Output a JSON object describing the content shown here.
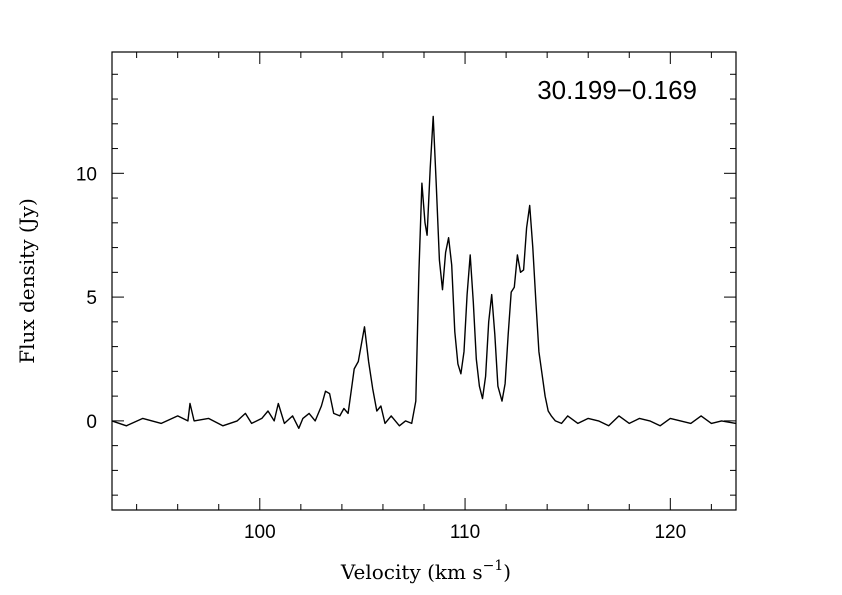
{
  "chart_data": {
    "type": "line",
    "source_label": "30.199−0.169",
    "xlabel": "Velocity (km s",
    "xlabel_exp": "−1",
    "xlabel_close": ")",
    "ylabel": "Flux density (Jy)",
    "xlim": [
      92.8,
      123.2
    ],
    "ylim": [
      -3.6,
      14.9
    ],
    "x_ticks": [
      100,
      110,
      120
    ],
    "x_tick_labels": [
      "100",
      "110",
      "120"
    ],
    "y_ticks": [
      0,
      5,
      10
    ],
    "y_tick_labels": [
      "0",
      "5",
      "10"
    ],
    "grid": false,
    "series": [
      {
        "color": "#000000",
        "x": [
          92.8,
          93.5,
          94.3,
          95.2,
          96.0,
          96.5,
          96.6,
          96.8,
          97.5,
          98.2,
          98.9,
          99.3,
          99.6,
          100.1,
          100.4,
          100.7,
          100.9,
          101.2,
          101.6,
          101.9,
          102.1,
          102.4,
          102.7,
          103.0,
          103.2,
          103.4,
          103.6,
          103.9,
          104.1,
          104.3,
          104.5,
          104.6,
          104.8,
          104.95,
          105.1,
          105.3,
          105.5,
          105.7,
          105.9,
          106.1,
          106.4,
          106.8,
          107.1,
          107.4,
          107.6,
          107.75,
          107.9,
          108.05,
          108.15,
          108.3,
          108.45,
          108.6,
          108.75,
          108.9,
          109.05,
          109.2,
          109.35,
          109.5,
          109.65,
          109.8,
          109.95,
          110.1,
          110.25,
          110.4,
          110.55,
          110.7,
          110.85,
          111.0,
          111.15,
          111.3,
          111.45,
          111.6,
          111.8,
          111.95,
          112.1,
          112.25,
          112.4,
          112.55,
          112.7,
          112.85,
          113.0,
          113.15,
          113.3,
          113.45,
          113.6,
          113.75,
          113.9,
          114.05,
          114.2,
          114.4,
          114.7,
          115.0,
          115.5,
          116.0,
          116.5,
          117.0,
          117.5,
          118.0,
          118.5,
          119.0,
          119.5,
          120.0,
          120.5,
          121.0,
          121.5,
          122.0,
          122.5,
          123.2
        ],
        "y": [
          0.0,
          -0.2,
          0.1,
          -0.1,
          0.2,
          0.0,
          0.7,
          0.0,
          0.1,
          -0.2,
          0.0,
          0.3,
          -0.1,
          0.1,
          0.4,
          0.0,
          0.7,
          -0.1,
          0.2,
          -0.3,
          0.1,
          0.3,
          0.0,
          0.6,
          1.2,
          1.1,
          0.3,
          0.2,
          0.5,
          0.3,
          1.5,
          2.1,
          2.4,
          3.1,
          3.8,
          2.4,
          1.3,
          0.4,
          0.6,
          -0.1,
          0.2,
          -0.2,
          0.0,
          -0.1,
          0.8,
          6.0,
          9.6,
          8.0,
          7.5,
          10.2,
          12.3,
          9.5,
          6.5,
          5.3,
          6.8,
          7.4,
          6.3,
          3.6,
          2.3,
          1.9,
          2.8,
          5.1,
          6.7,
          4.8,
          2.5,
          1.4,
          0.9,
          1.8,
          4.0,
          5.1,
          3.5,
          1.4,
          0.8,
          1.5,
          3.5,
          5.2,
          5.4,
          6.7,
          6.0,
          6.1,
          7.8,
          8.7,
          7.0,
          4.8,
          2.8,
          1.9,
          1.0,
          0.4,
          0.2,
          0.0,
          -0.1,
          0.2,
          -0.1,
          0.1,
          0.0,
          -0.2,
          0.2,
          -0.1,
          0.1,
          0.0,
          -0.2,
          0.1,
          0.0,
          -0.1,
          0.2,
          -0.1,
          0.0,
          -0.1
        ]
      }
    ]
  }
}
